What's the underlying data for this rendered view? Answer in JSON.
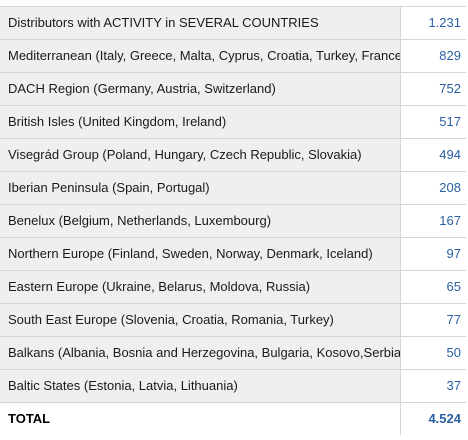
{
  "table": {
    "rows": [
      {
        "label": "Distributors with ACTIVITY in SEVERAL COUNTRIES",
        "value": "1.231"
      },
      {
        "label": "Mediterranean (Italy, Greece, Malta, Cyprus, Croatia, Turkey, France)",
        "value": "829"
      },
      {
        "label": "DACH Region (Germany, Austria, Switzerland)",
        "value": "752"
      },
      {
        "label": "British Isles (United Kingdom, Ireland)",
        "value": "517"
      },
      {
        "label": "Visegrád Group (Poland, Hungary, Czech Republic, Slovakia)",
        "value": "494"
      },
      {
        "label": "Iberian Peninsula (Spain, Portugal)",
        "value": "208"
      },
      {
        "label": "Benelux (Belgium, Netherlands, Luxembourg)",
        "value": "167"
      },
      {
        "label": "Northern Europe (Finland, Sweden, Norway, Denmark, Iceland)",
        "value": "97"
      },
      {
        "label": "Eastern Europe (Ukraine, Belarus, Moldova, Russia)",
        "value": "65"
      },
      {
        "label": "South East Europe (Slovenia, Croatia, Romania, Turkey)",
        "value": "77"
      },
      {
        "label": "Balkans (Albania, Bosnia and Herzegovina, Bulgaria, Kosovo,Serbia)",
        "value": "50"
      },
      {
        "label": "Baltic States (Estonia, Latvia, Lithuania)",
        "value": "37"
      }
    ],
    "total": {
      "label": "TOTAL",
      "value": "4.524"
    }
  },
  "colors": {
    "label_bg": "#efefef",
    "value_text": "#2b5fa3",
    "border": "#d6d6d6"
  }
}
